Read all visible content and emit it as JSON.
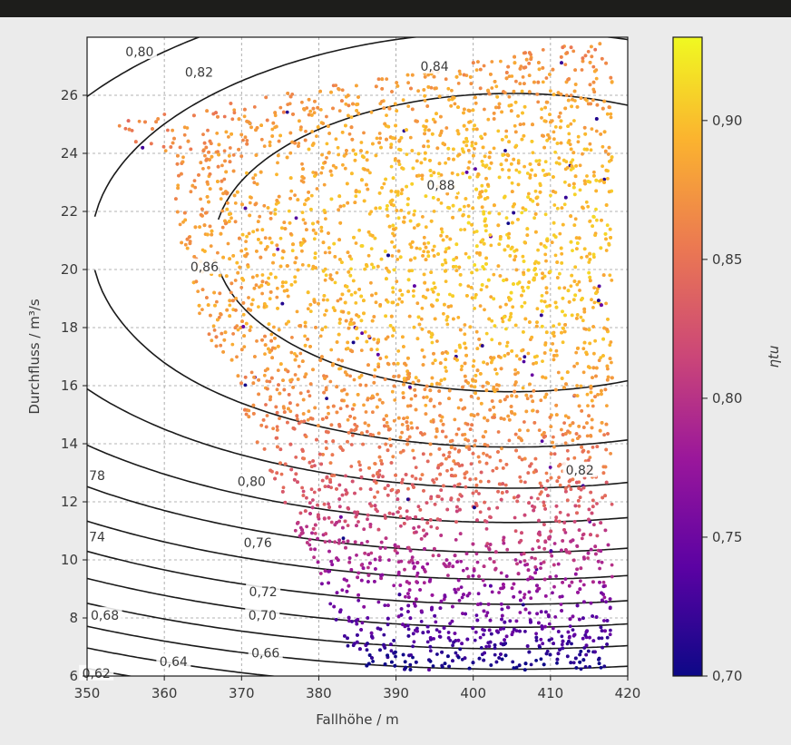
{
  "chart_data": {
    "type": "scatter",
    "xlabel": "Fallhöhe / m",
    "ylabel": "Durchfluss / m³/s",
    "xlim": [
      350,
      420
    ],
    "ylim": [
      6,
      28
    ],
    "x_ticks": [
      "350",
      "360",
      "370",
      "380",
      "390",
      "400",
      "410",
      "420"
    ],
    "y_ticks": [
      "6",
      "8",
      "10",
      "12",
      "14",
      "16",
      "18",
      "20",
      "22",
      "24",
      "26"
    ],
    "grid": true,
    "contours": {
      "center": [
        405,
        20.9
      ],
      "peak": 0.9,
      "labels": [
        {
          "text": "0,80",
          "x": 356.8,
          "y": 27.5
        },
        {
          "text": "0,82",
          "x": 364.5,
          "y": 26.8
        },
        {
          "text": "0,84",
          "x": 395.0,
          "y": 27.0
        },
        {
          "text": "0,88",
          "x": 395.8,
          "y": 22.9
        },
        {
          "text": "0,86",
          "x": 365.2,
          "y": 20.1
        },
        {
          "text": "0,82",
          "x": 413.8,
          "y": 13.1
        },
        {
          "text": "0,80",
          "x": 371.3,
          "y": 12.7
        },
        {
          "text": "78",
          "x": 351.3,
          "y": 12.9
        },
        {
          "text": "0,76",
          "x": 372.1,
          "y": 10.6
        },
        {
          "text": "74",
          "x": 351.3,
          "y": 10.8
        },
        {
          "text": "0,72",
          "x": 372.8,
          "y": 8.9
        },
        {
          "text": "0,70",
          "x": 372.7,
          "y": 8.1
        },
        {
          "text": "0,68",
          "x": 352.3,
          "y": 8.1
        },
        {
          "text": "0,66",
          "x": 373.1,
          "y": 6.8
        },
        {
          "text": "0,64",
          "x": 361.2,
          "y": 6.5
        },
        {
          "text": "0,62",
          "x": 351.2,
          "y": 6.1
        }
      ]
    },
    "series": [
      {
        "x_range": [
          352,
          418
        ],
        "y_range": [
          6.2,
          27.8
        ],
        "color_by": "eta_tu"
      }
    ],
    "colorbar": {
      "label": "ηtu",
      "range": [
        0.7,
        0.93
      ],
      "ticks": [
        "0,70",
        "0,75",
        "0,80",
        "0,85",
        "0,90"
      ],
      "colors": [
        "#0d0887",
        "#5b02a3",
        "#9a179b",
        "#cb4678",
        "#eb7852",
        "#fbb32f",
        "#f0f921"
      ]
    }
  }
}
